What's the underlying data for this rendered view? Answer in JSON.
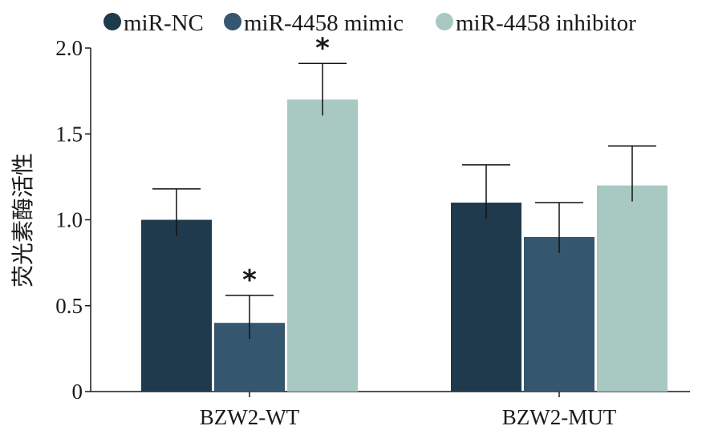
{
  "chart_data": {
    "type": "bar",
    "title": "",
    "xlabel": "",
    "ylabel": "荧光素酶活性",
    "ylim": [
      0,
      2.0
    ],
    "yticks": [
      "0",
      "0.5",
      "1.0",
      "1.5",
      "2.0"
    ],
    "ytick_values": [
      0,
      0.5,
      1.0,
      1.5,
      2.0
    ],
    "categories": [
      "BZW2-WT",
      "BZW2-MUT"
    ],
    "series": [
      {
        "name": "miR-NC",
        "color": "#1f3a4d",
        "values": [
          1.0,
          1.1
        ],
        "errors": [
          0.18,
          0.22
        ],
        "significance": [
          "",
          ""
        ]
      },
      {
        "name": "miR-4458 mimic",
        "color": "#34566f",
        "values": [
          0.4,
          0.9
        ],
        "errors": [
          0.16,
          0.2
        ],
        "significance": [
          "*",
          ""
        ]
      },
      {
        "name": "miR-4458 inhibitor",
        "color": "#a7c9c1",
        "values": [
          1.7,
          1.2
        ],
        "errors": [
          0.21,
          0.23
        ],
        "significance": [
          "*",
          ""
        ]
      }
    ],
    "legend_position": "top",
    "grid": false
  }
}
